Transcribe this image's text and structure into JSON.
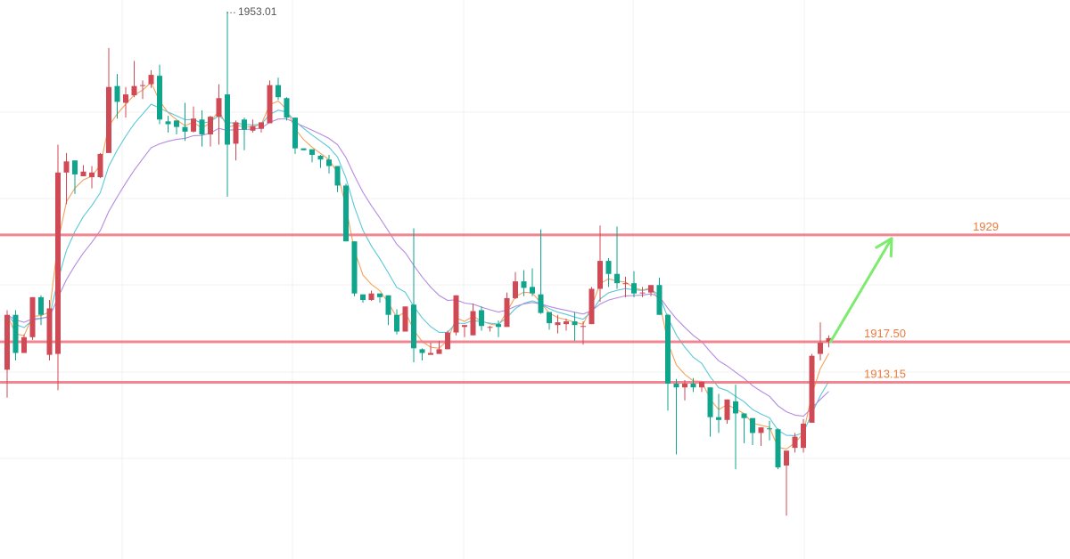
{
  "chart_data": {
    "type": "candlestick",
    "title": "",
    "xlabel": "",
    "ylabel": "",
    "ylim": [
      1894.15,
      1954.25
    ],
    "grid": true,
    "candle_colors": {
      "up": "#D04A55",
      "down": "#0FA48C"
    },
    "level_color": "#F07884",
    "level_text_color": "#EC7A3C",
    "peak_label": "1953.01",
    "levels": [
      {
        "value": 1929,
        "label": "1929"
      },
      {
        "value": 1917.5,
        "label": "1917.50"
      },
      {
        "value": 1913.15,
        "label": "1913.15"
      }
    ],
    "projection": {
      "from": 1917.5,
      "to": 1929,
      "color": "#7DEB6E"
    },
    "candles": [
      [
        1914.5,
        1920.4,
        1920.9,
        1911.5
      ],
      [
        1920.4,
        1916.3,
        1920.9,
        1915.5
      ],
      [
        1916.3,
        1918.0,
        1918.3,
        1916.3
      ],
      [
        1918.0,
        1922.3,
        1922.3,
        1917.7
      ],
      [
        1922.3,
        1920.4,
        1922.5,
        1919.3
      ],
      [
        1916.1,
        1921.1,
        1922.0,
        1915.5
      ],
      [
        1916.2,
        1935.7,
        1938.7,
        1912.3
      ],
      [
        1935.7,
        1936.9,
        1937.8,
        1932.3
      ],
      [
        1937.0,
        1935.5,
        1937.0,
        1933.4
      ],
      [
        1935.3,
        1935.8,
        1936.5,
        1935.4
      ],
      [
        1935.2,
        1935.7,
        1936.4,
        1934.0
      ],
      [
        1935.2,
        1937.7,
        1937.8,
        1935.1
      ],
      [
        1937.8,
        1944.9,
        1949.1,
        1937.9
      ],
      [
        1945.0,
        1943.3,
        1946.3,
        1941.5
      ],
      [
        1943.2,
        1944.1,
        1944.9,
        1941.6
      ],
      [
        1944.0,
        1945.0,
        1947.7,
        1943.8
      ],
      [
        1945.1,
        1945.1,
        1945.6,
        1943.6
      ],
      [
        1945.2,
        1946.2,
        1946.7,
        1944.8
      ],
      [
        1946.1,
        1941.4,
        1947.3,
        1940.9
      ],
      [
        1941.2,
        1940.9,
        1941.8,
        1940.0
      ],
      [
        1941.3,
        1940.6,
        1941.3,
        1939.8
      ],
      [
        1940.6,
        1940.1,
        1943.2,
        1939.1
      ],
      [
        1940.1,
        1941.5,
        1942.8,
        1940.0
      ],
      [
        1941.4,
        1939.8,
        1942.4,
        1938.5
      ],
      [
        1939.8,
        1941.7,
        1941.8,
        1938.5
      ],
      [
        1941.7,
        1943.7,
        1945.2,
        1938.7
      ],
      [
        1944.1,
        1938.7,
        1953.0,
        1933.1
      ],
      [
        1938.8,
        1941.1,
        1941.3,
        1937.0
      ],
      [
        1941.4,
        1940.3,
        1941.6,
        1938.1
      ],
      [
        1940.2,
        1940.7,
        1941.4,
        1940.0
      ],
      [
        1940.4,
        1941.1,
        1941.0,
        1940.0
      ],
      [
        1941.0,
        1945.1,
        1945.6,
        1941.1
      ],
      [
        1945.1,
        1943.8,
        1945.9,
        1943.5
      ],
      [
        1943.7,
        1941.6,
        1943.8,
        1941.3
      ],
      [
        1941.6,
        1938.3,
        1941.4,
        1937.7
      ],
      [
        1938.3,
        1938.1,
        1938.3,
        1938.1
      ],
      [
        1938.2,
        1937.6,
        1938.2,
        1936.8
      ],
      [
        1937.5,
        1937.1,
        1937.6,
        1936.2
      ],
      [
        1937.1,
        1936.4,
        1937.6,
        1935.6
      ],
      [
        1936.4,
        1934.3,
        1936.4,
        1933.6
      ],
      [
        1934.3,
        1928.3,
        1934.5,
        1928.3
      ],
      [
        1928.3,
        1922.7,
        1928.3,
        1922.4
      ],
      [
        1922.6,
        1922.0,
        1922.6,
        1921.7
      ],
      [
        1922.0,
        1922.7,
        1923.0,
        1921.9
      ],
      [
        1922.7,
        1922.3,
        1922.7,
        1921.7
      ],
      [
        1922.5,
        1920.4,
        1922.4,
        1919.3
      ],
      [
        1920.4,
        1918.6,
        1921.0,
        1918.3
      ],
      [
        1918.6,
        1921.3,
        1921.1,
        1920.3
      ],
      [
        1921.5,
        1916.8,
        1929.7,
        1915.3
      ],
      [
        1916.7,
        1916.3,
        1916.8,
        1915.5
      ],
      [
        1916.1,
        1916.3,
        1917.4,
        1916.1
      ],
      [
        1916.2,
        1916.7,
        1917.6,
        1916.2
      ],
      [
        1916.7,
        1918.5,
        1918.7,
        1916.7
      ],
      [
        1918.5,
        1922.5,
        1920.1,
        1918.2
      ],
      [
        1919.1,
        1919.3,
        1918.4,
        1918.0
      ],
      [
        1918.2,
        1920.8,
        1921.6,
        1918.5
      ],
      [
        1920.9,
        1919.2,
        1921.3,
        1918.7
      ],
      [
        1919.1,
        1919.1,
        1919.2,
        1918.6
      ],
      [
        1919.4,
        1919.1,
        1919.8,
        1918.0
      ],
      [
        1919.1,
        1922.2,
        1922.8,
        1919.1
      ],
      [
        1922.2,
        1924.0,
        1925.0,
        1922.1
      ],
      [
        1924.0,
        1923.3,
        1925.2,
        1922.4
      ],
      [
        1923.4,
        1922.7,
        1925.4,
        1922.4
      ],
      [
        1922.6,
        1920.6,
        1929.6,
        1920.5
      ],
      [
        1920.7,
        1919.5,
        1920.2,
        1918.8
      ],
      [
        1919.3,
        1919.6,
        1920.4,
        1918.4
      ],
      [
        1919.4,
        1919.7,
        1920.0,
        1918.7
      ],
      [
        1919.7,
        1919.3,
        1920.7,
        1917.6
      ],
      [
        1919.2,
        1919.2,
        1919.7,
        1917.2
      ],
      [
        1919.4,
        1923.2,
        1923.4,
        1919.4
      ],
      [
        1923.2,
        1926.2,
        1930.0,
        1921.8
      ],
      [
        1926.2,
        1924.8,
        1926.5,
        1923.4
      ],
      [
        1924.8,
        1923.8,
        1929.9,
        1923.2
      ],
      [
        1923.8,
        1923.8,
        1924.5,
        1922.3
      ],
      [
        1923.8,
        1922.7,
        1925.1,
        1922.3
      ],
      [
        1922.7,
        1922.8,
        1923.4,
        1922.3
      ],
      [
        1922.8,
        1923.6,
        1923.2,
        1922.4
      ],
      [
        1923.6,
        1920.4,
        1924.4,
        1920.4
      ],
      [
        1920.4,
        1913.0,
        1920.5,
        1910.1
      ],
      [
        1913.0,
        1912.6,
        1913.5,
        1905.4
      ],
      [
        1912.6,
        1913.0,
        1913.4,
        1911.2
      ],
      [
        1913.0,
        1912.6,
        1913.6,
        1912.1
      ],
      [
        1912.6,
        1913.2,
        1913.2,
        1912.1
      ],
      [
        1912.6,
        1909.4,
        1912.5,
        1907.3
      ],
      [
        1909.4,
        1909.1,
        1911.9,
        1907.7
      ],
      [
        1909.1,
        1911.3,
        1910.8,
        1908.7
      ],
      [
        1911.1,
        1909.8,
        1912.9,
        1903.8
      ],
      [
        1909.8,
        1909.3,
        1909.8,
        1906.6
      ],
      [
        1909.3,
        1907.7,
        1908.9,
        1906.4
      ],
      [
        1907.7,
        1908.3,
        1908.3,
        1906.3
      ],
      [
        1908.2,
        1908.1,
        1909.0,
        1906.9
      ],
      [
        1908.1,
        1904.0,
        1908.2,
        1903.8
      ],
      [
        1904.2,
        1905.8,
        1905.8,
        1898.8
      ],
      [
        1906.1,
        1907.3,
        1907.7,
        1905.6
      ],
      [
        1906.1,
        1908.7,
        1909.2,
        1905.6
      ],
      [
        1908.8,
        1916.0,
        1916.2,
        1908.9
      ],
      [
        1916.2,
        1917.4,
        1919.6,
        1915.5
      ],
      [
        1917.5,
        1917.9,
        1918.2,
        1916.9
      ]
    ],
    "series": [
      {
        "color": "#F5A25C"
      },
      {
        "color": "#5BC8D8"
      },
      {
        "color": "#B58BE2"
      }
    ]
  }
}
